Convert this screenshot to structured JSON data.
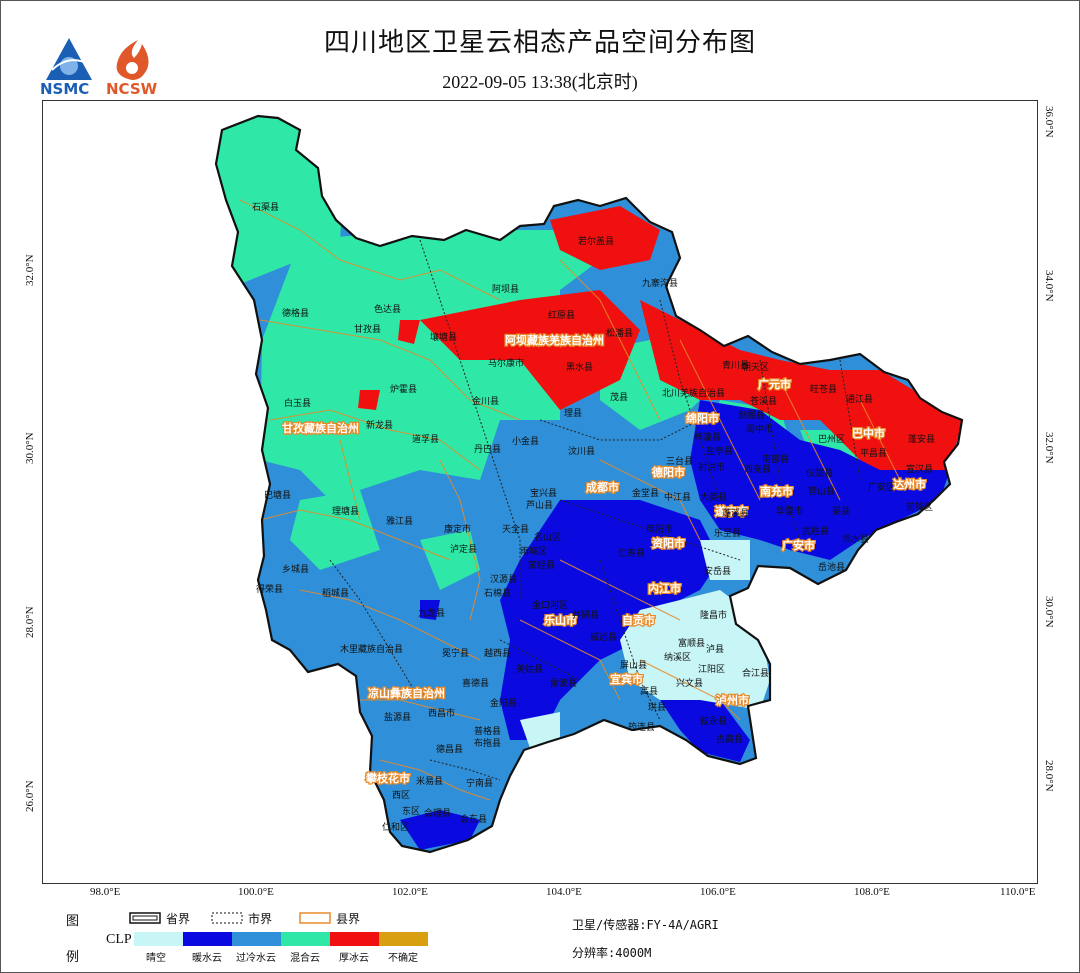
{
  "title": "四川地区卫星云相态产品空间分布图",
  "subtitle": "2022-09-05 13:38(北京时)",
  "logos": [
    {
      "name": "NSMC",
      "color": "#1a5fb4"
    },
    {
      "name": "NCSW",
      "color": "#e0582a"
    }
  ],
  "axes": {
    "bottom_ticks": [
      "98.0°E",
      "100.0°E",
      "102.0°E",
      "104.0°E",
      "106.0°E",
      "108.0°E",
      "110.0°E"
    ],
    "left_ticks": [
      "32.0°N",
      "30.0°N",
      "28.0°N",
      "26.0°N"
    ],
    "right_ticks": [
      "36.0°N",
      "34.0°N",
      "32.0°N",
      "30.0°N",
      "28.0°N"
    ]
  },
  "legend": {
    "label_top": "图",
    "label_bottom": "例",
    "boundaries": [
      {
        "label": "省界",
        "style": "double-black"
      },
      {
        "label": "市界",
        "style": "dotted-black"
      },
      {
        "label": "县界",
        "style": "orange"
      }
    ],
    "clp_label": "CLP",
    "classes": [
      {
        "label": "晴空",
        "color": "#c8f5f5"
      },
      {
        "label": "暖水云",
        "color": "#0a0ae0"
      },
      {
        "label": "过冷水云",
        "color": "#2f8fd8"
      },
      {
        "label": "混合云",
        "color": "#2fe8a8"
      },
      {
        "label": "厚冰云",
        "color": "#f01010"
      },
      {
        "label": "不确定",
        "color": "#d8a010"
      }
    ]
  },
  "info": {
    "satellite": "卫星/传感器:FY-4A/AGRI",
    "resolution": "分辨率:4000M"
  },
  "map_labels": {
    "prefectures": [
      "阿坝藏族羌族自治州",
      "甘孜藏族自治州",
      "凉山彝族自治州",
      "攀枝花市",
      "成都市",
      "德阳市",
      "绵阳市",
      "广元市",
      "巴中市",
      "达州市",
      "南充市",
      "广安市",
      "遂宁市",
      "资阳市",
      "内江市",
      "自贡市",
      "乐山市",
      "宜宾市",
      "泸州市",
      "眉山市",
      "雅安市"
    ],
    "counties": [
      "石渠县",
      "若尔盖县",
      "阿坝县",
      "九寨沟县",
      "色达县",
      "德格县",
      "甘孜县",
      "炉霍县",
      "红原县",
      "松潘县",
      "壤塘县",
      "马尔康市",
      "黑水县",
      "青川县",
      "朝天区",
      "白玉县",
      "新龙县",
      "道孚县",
      "金川县",
      "理县",
      "茂县",
      "北川羌族自治县",
      "丹巴县",
      "小金县",
      "汶川县",
      "安州区",
      "旺苍县",
      "通江县",
      "巴州区",
      "平昌县",
      "开江县",
      "宣汉县",
      "大竹县",
      "巴塘县",
      "理塘县",
      "雅江县",
      "康定市",
      "泸定县",
      "宝兴县",
      "芦山县",
      "天全县",
      "名山区",
      "雨城区",
      "荥经县",
      "汉源县",
      "石棉县",
      "九龙县",
      "稻城县",
      "乡城县",
      "得荣县",
      "木里藏族自治县",
      "冕宁县",
      "越西县",
      "甘洛县",
      "金口河区",
      "峨边彝族自治县",
      "马边彝族自治县",
      "喜德县",
      "昭觉县",
      "美姑县",
      "雷波县",
      "西昌市",
      "盐源县",
      "德昌县",
      "普格县",
      "布拖县",
      "金阳县",
      "会理县",
      "会东县",
      "宁南县",
      "米易县",
      "仁和区",
      "西区",
      "东区",
      "屏山县",
      "高县",
      "筠连县",
      "珙县",
      "兴文县",
      "叙永县",
      "古蔺县",
      "合江县",
      "江阳区",
      "纳溪区",
      "泸县",
      "富顺县",
      "隆昌市",
      "威远县",
      "井研县",
      "仁寿县",
      "简阳市",
      "乐至县",
      "安岳县",
      "大英县",
      "射洪市",
      "蓬溪县",
      "西充县",
      "南部县",
      "阆中市",
      "苍溪县",
      "剑阁县",
      "梓潼县",
      "盐亭县",
      "三台县",
      "中江县",
      "金堂县",
      "营山县",
      "仪陇县",
      "渠县",
      "邻水县",
      "岳池县",
      "武胜县",
      "华蓥市",
      "前锋区",
      "广安区",
      "蓬安县",
      "高坪区",
      "嘉陵区",
      "顺庆区",
      "大竹县",
      "达川区",
      "通川区",
      "万源市"
    ]
  }
}
